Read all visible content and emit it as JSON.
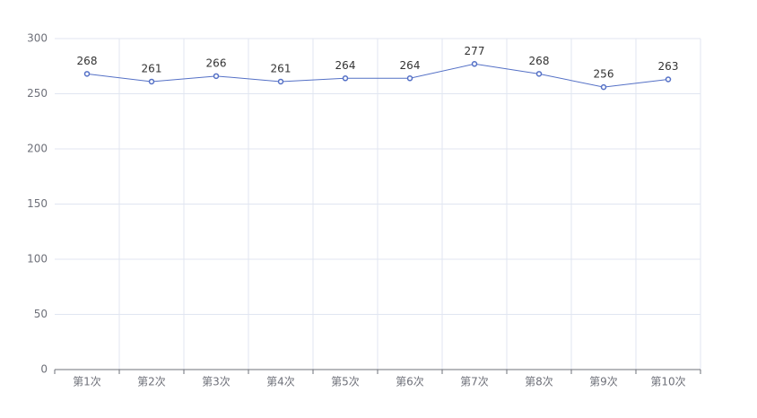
{
  "chart_data": {
    "type": "line",
    "categories": [
      "第1次",
      "第2次",
      "第3次",
      "第4次",
      "第5次",
      "第6次",
      "第7次",
      "第8次",
      "第9次",
      "第10次"
    ],
    "values": [
      268,
      261,
      266,
      261,
      264,
      264,
      277,
      268,
      256,
      263
    ],
    "color": "#5470c6",
    "ylim": [
      0,
      300
    ],
    "yticks": [
      0,
      50,
      100,
      150,
      200,
      250,
      300
    ],
    "grid": true,
    "show_values": true
  }
}
